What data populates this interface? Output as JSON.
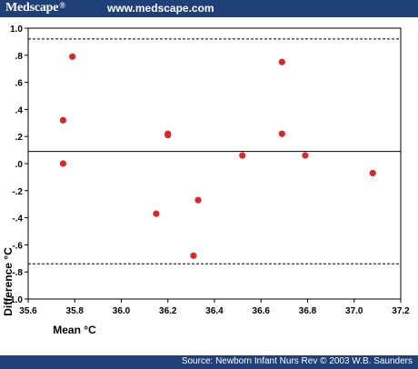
{
  "header": {
    "brand": "Medscape",
    "brand_mark": "®",
    "site_url": "www.medscape.com"
  },
  "colors": {
    "header_bg": "#1e3f78",
    "point": "#d62a2a"
  },
  "footer": {
    "source": "Source: Newborn Infant Nurs Rev © 2003 W.B. Saunders"
  },
  "chart_data": {
    "type": "scatter",
    "title": "",
    "xlabel": "Mean °C",
    "ylabel": "Difference °C",
    "xlim": [
      35.6,
      37.2
    ],
    "ylim": [
      -1.0,
      1.0
    ],
    "x_ticks": [
      "35.6",
      "35.8",
      "36.0",
      "36.2",
      "36.4",
      "36.6",
      "36.8",
      "37.0",
      "37.2"
    ],
    "y_ticks": [
      "-1.0",
      "-.8",
      "-.6",
      "-.4",
      "-.2",
      ".0",
      ".2",
      ".4",
      ".6",
      ".8",
      "1.0"
    ],
    "grid": false,
    "reference_lines": [
      {
        "y": 0.92,
        "style": "dashed"
      },
      {
        "y": 0.09,
        "style": "solid"
      },
      {
        "y": -0.74,
        "style": "dashed"
      }
    ],
    "points": [
      {
        "x": 35.75,
        "y": 0.32
      },
      {
        "x": 35.75,
        "y": 0.0
      },
      {
        "x": 35.79,
        "y": 0.79
      },
      {
        "x": 36.2,
        "y": 0.22
      },
      {
        "x": 36.2,
        "y": 0.21
      },
      {
        "x": 36.15,
        "y": -0.37
      },
      {
        "x": 36.33,
        "y": -0.27
      },
      {
        "x": 36.31,
        "y": -0.68
      },
      {
        "x": 36.52,
        "y": 0.06
      },
      {
        "x": 36.69,
        "y": 0.75
      },
      {
        "x": 36.69,
        "y": 0.22
      },
      {
        "x": 36.79,
        "y": 0.06
      },
      {
        "x": 37.08,
        "y": -0.07
      }
    ]
  }
}
